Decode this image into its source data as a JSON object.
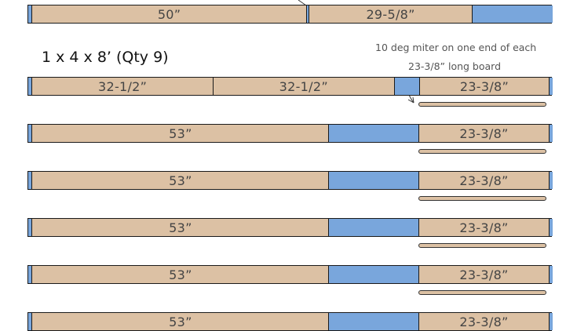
{
  "colors": {
    "wood": "#dcc1a4",
    "waste": "#79a6dc",
    "outline": "#1a1a1a"
  },
  "title": "1 x 4 x 8’ (Qty 9)",
  "note": {
    "line1": "10 deg miter on one end of each",
    "line2": "23-3/8” long board"
  },
  "rows": [
    {
      "pieces": [
        {
          "kind": "waste",
          "length": 0.75,
          "label": ""
        },
        {
          "kind": "wood",
          "length": 50,
          "label": "50”"
        },
        {
          "kind": "waste",
          "length": 0.5,
          "label": ""
        },
        {
          "kind": "wood",
          "length": 29.625,
          "label": "29-5/8”"
        },
        {
          "kind": "waste",
          "length": 14.625,
          "label": ""
        }
      ]
    },
    {
      "pieces": [
        {
          "kind": "waste",
          "length": 0.75,
          "label": ""
        },
        {
          "kind": "wood",
          "length": 32.5,
          "label": "32-1/2”"
        },
        {
          "kind": "wood",
          "length": 32.5,
          "label": "32-1/2”"
        },
        {
          "kind": "waste",
          "length": 4.5,
          "label": ""
        },
        {
          "kind": "wood",
          "length": 23.375,
          "label": "23-3/8”"
        },
        {
          "kind": "waste",
          "length": 0.5,
          "label": ""
        }
      ]
    },
    {
      "pieces": [
        {
          "kind": "waste",
          "length": 0.75,
          "label": ""
        },
        {
          "kind": "wood",
          "length": 53,
          "label": "53”"
        },
        {
          "kind": "waste",
          "length": 16,
          "label": ""
        },
        {
          "kind": "wood",
          "length": 23.375,
          "label": "23-3/8”"
        },
        {
          "kind": "waste",
          "length": 0.5,
          "label": ""
        }
      ]
    },
    {
      "pieces": [
        {
          "kind": "waste",
          "length": 0.75,
          "label": ""
        },
        {
          "kind": "wood",
          "length": 53,
          "label": "53”"
        },
        {
          "kind": "waste",
          "length": 16,
          "label": ""
        },
        {
          "kind": "wood",
          "length": 23.375,
          "label": "23-3/8”"
        },
        {
          "kind": "waste",
          "length": 0.5,
          "label": ""
        }
      ]
    },
    {
      "pieces": [
        {
          "kind": "waste",
          "length": 0.75,
          "label": ""
        },
        {
          "kind": "wood",
          "length": 53,
          "label": "53”"
        },
        {
          "kind": "waste",
          "length": 16,
          "label": ""
        },
        {
          "kind": "wood",
          "length": 23.375,
          "label": "23-3/8”"
        },
        {
          "kind": "waste",
          "length": 0.5,
          "label": ""
        }
      ]
    },
    {
      "pieces": [
        {
          "kind": "waste",
          "length": 0.75,
          "label": ""
        },
        {
          "kind": "wood",
          "length": 53,
          "label": "53”"
        },
        {
          "kind": "waste",
          "length": 16,
          "label": ""
        },
        {
          "kind": "wood",
          "length": 23.375,
          "label": "23-3/8”"
        },
        {
          "kind": "waste",
          "length": 0.5,
          "label": ""
        }
      ]
    },
    {
      "pieces": [
        {
          "kind": "waste",
          "length": 0.75,
          "label": ""
        },
        {
          "kind": "wood",
          "length": 53,
          "label": "53”"
        },
        {
          "kind": "waste",
          "length": 16,
          "label": ""
        },
        {
          "kind": "wood",
          "length": 23.375,
          "label": "23-3/8”"
        },
        {
          "kind": "waste",
          "length": 0.5,
          "label": ""
        }
      ]
    }
  ]
}
